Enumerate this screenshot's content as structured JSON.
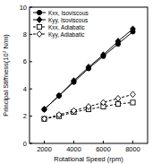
{
  "chart_data": {
    "type": "line",
    "x_label": "Rotational Speed (rpm)",
    "y_label": "Principal Stiffness(10⁷ N/m)",
    "x": [
      2000,
      3000,
      4000,
      5000,
      6000,
      7000,
      8000
    ],
    "series": [
      {
        "name": "Kxx, Isoviscous",
        "color": "#000000",
        "marker": "circle",
        "line_style": "solid",
        "values": [
          2.5,
          3.5,
          4.5,
          5.5,
          6.4,
          7.3,
          8.2
        ]
      },
      {
        "name": "Kyy, Isoviscous",
        "color": "#000000",
        "marker": "diamond",
        "line_style": "solid",
        "values": [
          2.5,
          3.5,
          4.6,
          5.6,
          6.5,
          7.5,
          8.4
        ]
      },
      {
        "name": "Kxx, Adiabatic",
        "color": "#000000",
        "marker": "open-square",
        "line_style": "dashed",
        "values": [
          1.8,
          2.0,
          2.3,
          2.5,
          2.7,
          2.9,
          3.0
        ]
      },
      {
        "name": "Kyy, Adiabatic",
        "color": "#000000",
        "marker": "open-diamond",
        "line_style": "dashed",
        "values": [
          1.8,
          2.1,
          2.4,
          2.7,
          3.0,
          3.3,
          3.6
        ]
      }
    ],
    "xlim": [
      1000,
      9000
    ],
    "xticks": [
      2000,
      4000,
      6000,
      8000
    ],
    "ylim": [
      0,
      10
    ],
    "yticks": [
      0,
      2,
      4,
      6,
      8,
      10
    ],
    "grid": false,
    "legend": "upper left"
  }
}
